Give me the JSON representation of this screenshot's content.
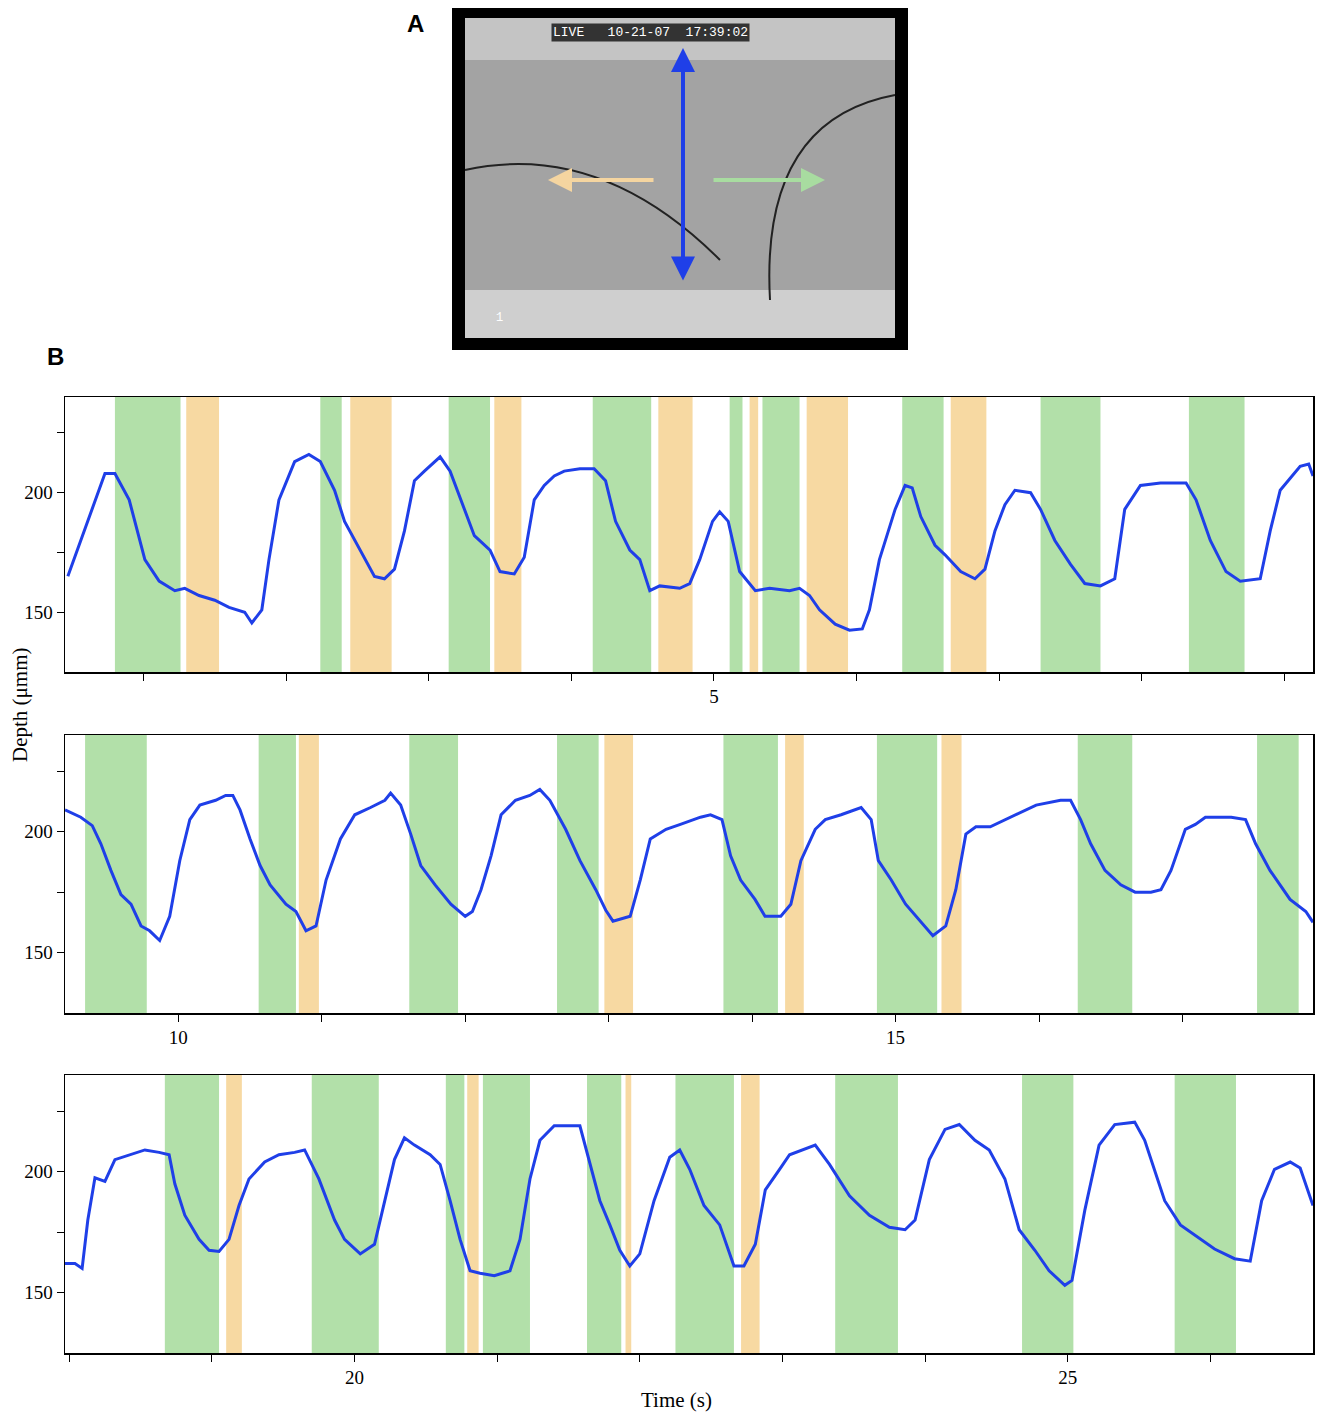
{
  "panel_labels": [
    "A",
    "B"
  ],
  "panel_a": {
    "overlay_texts": [
      "LIVE   10-21-07  17:39:02",
      "1"
    ],
    "arrow_colors": {
      "vertical": "#1f3fe8",
      "left": "#f5d5a0",
      "right": "#a8dca0"
    }
  },
  "chart_data": [
    {
      "type": "line",
      "color": "#1f3fe8",
      "xlim": [
        0.45,
        9.2
      ],
      "xticks": [
        {
          "value": 1,
          "label": null
        },
        {
          "value": 2,
          "label": null
        },
        {
          "value": 3,
          "label": null
        },
        {
          "value": 4,
          "label": null
        },
        5,
        {
          "value": 6,
          "label": null
        },
        {
          "value": 7,
          "label": null
        },
        {
          "value": 8,
          "label": null
        },
        {
          "value": 9,
          "label": null
        }
      ],
      "ylim": [
        125,
        240
      ],
      "yticks": [
        150,
        {
          "value": 175,
          "label": null
        },
        200,
        {
          "value": 225,
          "label": null
        }
      ],
      "x": [
        0.47,
        0.73,
        0.8,
        0.9,
        1.01,
        1.11,
        1.22,
        1.29,
        1.39,
        1.5,
        1.6,
        1.71,
        1.76,
        1.83,
        1.88,
        1.95,
        2.06,
        2.16,
        2.24,
        2.34,
        2.41,
        2.52,
        2.62,
        2.69,
        2.76,
        2.83,
        2.9,
        2.97,
        3.08,
        3.15,
        3.25,
        3.32,
        3.43,
        3.5,
        3.6,
        3.67,
        3.74,
        3.81,
        3.88,
        3.95,
        4.06,
        4.16,
        4.24,
        4.31,
        4.41,
        4.48,
        4.55,
        4.62,
        4.76,
        4.83,
        4.9,
        4.99,
        5.04,
        5.1,
        5.18,
        5.29,
        5.39,
        5.53,
        5.6,
        5.67,
        5.74,
        5.85,
        5.95,
        6.04,
        6.09,
        6.16,
        6.27,
        6.34,
        6.39,
        6.45,
        6.55,
        6.62,
        6.73,
        6.83,
        6.9,
        6.97,
        7.04,
        7.11,
        7.22,
        7.29,
        7.39,
        7.5,
        7.6,
        7.71,
        7.81,
        7.88,
        7.99,
        8.13,
        8.31,
        8.38,
        8.48,
        8.59,
        8.69,
        8.83,
        8.9,
        8.97,
        9.11,
        9.17,
        9.2
      ],
      "values": [
        165,
        208,
        208,
        197,
        172,
        163,
        159,
        160,
        157,
        155,
        152,
        150,
        145.5,
        151,
        172,
        197,
        213,
        216,
        213,
        201,
        188,
        176,
        165,
        164,
        168,
        184,
        205,
        209,
        215,
        209,
        193,
        182,
        176,
        167,
        166,
        173,
        197,
        203,
        207,
        209,
        210,
        210,
        205,
        188,
        176,
        172,
        159,
        161,
        160,
        162,
        172,
        188,
        192,
        188,
        167,
        159,
        160,
        159,
        160,
        157,
        151,
        145,
        142.5,
        143,
        151,
        172,
        193,
        203,
        202,
        190,
        178,
        174,
        167,
        164,
        168,
        184,
        195,
        201,
        200,
        193,
        180,
        170,
        162,
        161,
        164,
        193,
        203,
        204,
        204,
        197,
        180,
        167,
        163,
        164,
        184,
        201,
        211,
        212,
        207
      ],
      "spans": [
        {
          "color": "#b2e0a9",
          "intervals": [
            [
              0.8,
              1.26
            ],
            [
              2.24,
              2.39
            ],
            [
              3.14,
              3.43
            ],
            [
              4.15,
              4.56
            ],
            [
              5.11,
              5.2
            ],
            [
              5.34,
              5.6
            ],
            [
              6.32,
              6.61
            ],
            [
              7.29,
              7.71
            ],
            [
              8.33,
              8.72
            ]
          ]
        },
        {
          "color": "#f7d9a2",
          "intervals": [
            [
              1.3,
              1.53
            ],
            [
              2.45,
              2.74
            ],
            [
              3.46,
              3.65
            ],
            [
              4.61,
              4.85
            ],
            [
              5.25,
              5.31
            ],
            [
              5.65,
              5.94
            ],
            [
              6.66,
              6.91
            ]
          ]
        }
      ]
    },
    {
      "type": "line",
      "color": "#1f3fe8",
      "ylabel": "Depth (μmm)",
      "xlim": [
        9.21,
        17.91
      ],
      "xticks": [
        10,
        {
          "value": 11,
          "label": null
        },
        {
          "value": 12,
          "label": null
        },
        {
          "value": 13,
          "label": null
        },
        {
          "value": 14,
          "label": null
        },
        15,
        {
          "value": 16,
          "label": null
        },
        {
          "value": 17,
          "label": null
        }
      ],
      "ylim": [
        125,
        240
      ],
      "yticks": [
        150,
        {
          "value": 175,
          "label": null
        },
        200,
        {
          "value": 225,
          "label": null
        }
      ],
      "x": [
        9.21,
        9.32,
        9.4,
        9.46,
        9.53,
        9.6,
        9.67,
        9.74,
        9.8,
        9.87,
        9.94,
        10.01,
        10.08,
        10.15,
        10.26,
        10.33,
        10.38,
        10.43,
        10.5,
        10.57,
        10.64,
        10.75,
        10.82,
        10.89,
        10.96,
        11.03,
        11.13,
        11.23,
        11.34,
        11.44,
        11.48,
        11.55,
        11.62,
        11.69,
        11.79,
        11.9,
        12.0,
        12.05,
        12.11,
        12.18,
        12.25,
        12.35,
        12.45,
        12.52,
        12.59,
        12.7,
        12.8,
        12.91,
        12.98,
        13.03,
        13.15,
        13.22,
        13.29,
        13.4,
        13.5,
        13.64,
        13.71,
        13.79,
        13.85,
        13.92,
        14.02,
        14.09,
        14.2,
        14.27,
        14.34,
        14.44,
        14.51,
        14.62,
        14.76,
        14.83,
        14.88,
        14.97,
        15.07,
        15.17,
        15.26,
        15.35,
        15.42,
        15.49,
        15.56,
        15.66,
        15.77,
        15.87,
        15.98,
        16.15,
        16.22,
        16.29,
        16.36,
        16.46,
        16.57,
        16.67,
        16.78,
        16.85,
        16.92,
        17.02,
        17.09,
        17.16,
        17.34,
        17.44,
        17.51,
        17.61,
        17.75,
        17.86,
        17.91
      ],
      "values": [
        209,
        206,
        202.5,
        195,
        184,
        174,
        170,
        161,
        159,
        155,
        165,
        188,
        205,
        211,
        213,
        215,
        215,
        209,
        197,
        186,
        178,
        170,
        167,
        159,
        161,
        180,
        197,
        207,
        210,
        213,
        216,
        211,
        199,
        186,
        178,
        170,
        165,
        167,
        176,
        190,
        207,
        213,
        215,
        217.5,
        213,
        201,
        188,
        176,
        167.5,
        163,
        165,
        180,
        197,
        201,
        203,
        206,
        207,
        205,
        190,
        180,
        172,
        165,
        165,
        170,
        188,
        201,
        205,
        207,
        210,
        205,
        188,
        180,
        170,
        163,
        157,
        161,
        176,
        199,
        202,
        202,
        205,
        208,
        211,
        213,
        213,
        205,
        195,
        184,
        178,
        175,
        175,
        176,
        184,
        201,
        203,
        206,
        206,
        205,
        195,
        184,
        172,
        167,
        162.5
      ],
      "spans": [
        {
          "color": "#b2e0a9",
          "intervals": [
            [
              9.35,
              9.78
            ],
            [
              10.56,
              10.82
            ],
            [
              11.61,
              11.95
            ],
            [
              12.64,
              12.93
            ],
            [
              13.8,
              14.18
            ],
            [
              14.87,
              15.29
            ],
            [
              16.27,
              16.65
            ],
            [
              17.52,
              17.81
            ]
          ]
        },
        {
          "color": "#f7d9a2",
          "intervals": [
            [
              10.84,
              10.98
            ],
            [
              12.97,
              13.17
            ],
            [
              14.23,
              14.36
            ],
            [
              15.32,
              15.46
            ]
          ]
        }
      ]
    },
    {
      "type": "line",
      "color": "#1f3fe8",
      "xlabel": "Time (s)",
      "xlim": [
        17.97,
        26.72
      ],
      "xticks": [
        {
          "value": 18,
          "label": null
        },
        {
          "value": 19,
          "label": null
        },
        20,
        {
          "value": 21,
          "label": null
        },
        {
          "value": 22,
          "label": null
        },
        {
          "value": 23,
          "label": null
        },
        {
          "value": 24,
          "label": null
        },
        25,
        {
          "value": 26,
          "label": null
        }
      ],
      "ylim": [
        125,
        240
      ],
      "yticks": [
        150,
        {
          "value": 175,
          "label": null
        },
        200,
        {
          "value": 225,
          "label": null
        }
      ],
      "x": [
        17.97,
        18.04,
        18.09,
        18.13,
        18.18,
        18.25,
        18.32,
        18.42,
        18.53,
        18.63,
        18.7,
        18.74,
        18.81,
        18.91,
        18.98,
        19.05,
        19.12,
        19.19,
        19.26,
        19.37,
        19.47,
        19.58,
        19.65,
        19.75,
        19.86,
        19.93,
        20.04,
        20.14,
        20.21,
        20.28,
        20.35,
        20.42,
        20.53,
        20.6,
        20.67,
        20.74,
        20.81,
        20.88,
        20.98,
        21.09,
        21.16,
        21.23,
        21.3,
        21.4,
        21.58,
        21.65,
        21.72,
        21.79,
        21.86,
        21.93,
        22.0,
        22.1,
        22.21,
        22.28,
        22.35,
        22.45,
        22.56,
        22.66,
        22.73,
        22.81,
        22.88,
        22.98,
        23.05,
        23.23,
        23.33,
        23.47,
        23.61,
        23.75,
        23.86,
        23.93,
        24.03,
        24.14,
        24.24,
        24.35,
        24.45,
        24.56,
        24.66,
        24.77,
        24.87,
        24.98,
        25.03,
        25.12,
        25.22,
        25.33,
        25.47,
        25.54,
        25.68,
        25.79,
        25.93,
        26.03,
        26.17,
        26.28,
        26.36,
        26.45,
        26.56,
        26.63,
        26.72
      ],
      "values": [
        162,
        162,
        160,
        180,
        197.5,
        196,
        205,
        207,
        209,
        208,
        207,
        195,
        182,
        172,
        167.5,
        167,
        172,
        186,
        197,
        204,
        207,
        208,
        209,
        197,
        180,
        172,
        166,
        170,
        188,
        205,
        214,
        211,
        207,
        203,
        188,
        172,
        159,
        158,
        157,
        159,
        172,
        197,
        213,
        219,
        219,
        203,
        188,
        178,
        167.5,
        161,
        166,
        188,
        206,
        209,
        201,
        186,
        178,
        161,
        161,
        170,
        192.5,
        201,
        207,
        211,
        203,
        190,
        182,
        177,
        176,
        180,
        205,
        217.5,
        219.5,
        213,
        209,
        197,
        176,
        167.5,
        159,
        153,
        155,
        184,
        211,
        219.5,
        220.5,
        213,
        188,
        178,
        172,
        168,
        164,
        163,
        188,
        201,
        204,
        201.5,
        186
      ],
      "spans": [
        {
          "color": "#b2e0a9",
          "intervals": [
            [
              18.67,
              19.05
            ],
            [
              19.7,
              20.17
            ],
            [
              20.64,
              20.77
            ],
            [
              20.9,
              21.23
            ],
            [
              21.63,
              21.87
            ],
            [
              22.25,
              22.66
            ],
            [
              23.37,
              23.81
            ],
            [
              24.68,
              25.04
            ],
            [
              25.75,
              26.18
            ]
          ]
        },
        {
          "color": "#f7d9a2",
          "intervals": [
            [
              19.1,
              19.21
            ],
            [
              20.79,
              20.87
            ],
            [
              21.9,
              21.94
            ],
            [
              22.71,
              22.84
            ]
          ]
        }
      ]
    }
  ]
}
